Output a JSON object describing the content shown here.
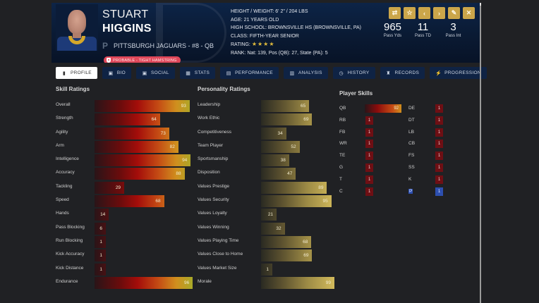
{
  "player": {
    "first_name": "STUART",
    "last_name": "HIGGINS",
    "team_logo": "P",
    "team_line": "PITTSBURGH JAGUARS - #8 - QB",
    "injury": "PROBABLE - TIGHT HAMSTRING"
  },
  "bio": {
    "height_weight": "HEIGHT / WEIGHT: 6' 2\" / 204 LBS",
    "age": "AGE: 21 YEARS OLD",
    "high_school": "HIGH SCHOOL: BROWNSVILLE HS (BROWNSVILLE, PA)",
    "class": "CLASS: FIFTH-YEAR SENIOR",
    "rating_label": "RATING:",
    "rating_stars": "★★★★",
    "rank": "RANK: Nat: 139, Pos (QB): 27, State (PA): 5"
  },
  "actions": [
    {
      "name": "compare-button",
      "icon": "⇄"
    },
    {
      "name": "favorite-button",
      "icon": "☆"
    },
    {
      "name": "previous-button",
      "icon": "‹"
    },
    {
      "name": "next-button",
      "icon": "›"
    },
    {
      "name": "edit-button",
      "icon": "✎"
    },
    {
      "name": "close-button",
      "icon": "✕"
    }
  ],
  "stats": [
    {
      "value": "965",
      "label": "Pass Yds"
    },
    {
      "value": "11",
      "label": "Pass TD"
    },
    {
      "value": "3",
      "label": "Pass Int"
    }
  ],
  "tabs": [
    {
      "label": "PROFILE",
      "icon": "▮",
      "active": true
    },
    {
      "label": "BIO",
      "icon": "▣"
    },
    {
      "label": "SOCIAL",
      "icon": "▣"
    },
    {
      "label": "STATS",
      "icon": "▦"
    },
    {
      "label": "PERFORMANCE",
      "icon": "▤"
    },
    {
      "label": "ANALYSIS",
      "icon": "▥"
    },
    {
      "label": "HISTORY",
      "icon": "◷"
    },
    {
      "label": "RECORDS",
      "icon": "♜"
    },
    {
      "label": "PROGRESSION",
      "icon": "⚡"
    }
  ],
  "skill_ratings": {
    "title": "Skill Ratings",
    "items": [
      {
        "label": "Overall",
        "value": 93
      },
      {
        "label": "Strength",
        "value": 64
      },
      {
        "label": "Agility",
        "value": 73
      },
      {
        "label": "Arm",
        "value": 82
      },
      {
        "label": "Intelligence",
        "value": 94
      },
      {
        "label": "Accuracy",
        "value": 88
      },
      {
        "label": "Tackling",
        "value": 29
      },
      {
        "label": "Speed",
        "value": 68
      },
      {
        "label": "Hands",
        "value": 14
      },
      {
        "label": "Pass Blocking",
        "value": 6
      },
      {
        "label": "Run Blocking",
        "value": 1
      },
      {
        "label": "Kick Accuracy",
        "value": 1
      },
      {
        "label": "Kick Distance",
        "value": 1
      },
      {
        "label": "Endurance",
        "value": 96
      }
    ]
  },
  "personality_ratings": {
    "title": "Personality Ratings",
    "items": [
      {
        "label": "Leadership",
        "value": 65
      },
      {
        "label": "Work Ethic",
        "value": 69
      },
      {
        "label": "Competitiveness",
        "value": 34
      },
      {
        "label": "Team Player",
        "value": 52
      },
      {
        "label": "Sportsmanship",
        "value": 38
      },
      {
        "label": "Disposition",
        "value": 47
      },
      {
        "label": "Values Prestige",
        "value": 89
      },
      {
        "label": "Values Security",
        "value": 95
      },
      {
        "label": "Values Loyalty",
        "value": 21
      },
      {
        "label": "Values Winning",
        "value": 32
      },
      {
        "label": "Values Playing Time",
        "value": 68
      },
      {
        "label": "Values Close to Home",
        "value": 69
      },
      {
        "label": "Values Market Size",
        "value": 1
      },
      {
        "label": "Morale",
        "value": 99
      }
    ]
  },
  "player_skills": {
    "title": "Player Skills",
    "left": [
      {
        "pos": "QB",
        "value": 92
      },
      {
        "pos": "RB",
        "value": 1
      },
      {
        "pos": "FB",
        "value": 1
      },
      {
        "pos": "WR",
        "value": 1
      },
      {
        "pos": "TE",
        "value": 1
      },
      {
        "pos": "G",
        "value": 1
      },
      {
        "pos": "T",
        "value": 1
      },
      {
        "pos": "C",
        "value": 1
      }
    ],
    "right": [
      {
        "pos": "DE",
        "value": 1
      },
      {
        "pos": "DT",
        "value": 1
      },
      {
        "pos": "LB",
        "value": 1
      },
      {
        "pos": "CB",
        "value": 1
      },
      {
        "pos": "FS",
        "value": 1
      },
      {
        "pos": "SS",
        "value": 1
      },
      {
        "pos": "K",
        "value": 1
      },
      {
        "pos": "P",
        "value": 1,
        "highlight": true
      }
    ]
  },
  "colors": {
    "header_bg": "#0d2447",
    "accent_gold": "#cba64a",
    "tab_bg": "#0f2344",
    "injury_red": "#e0485a",
    "page_bg": "#202124",
    "highlight_blue": "#2d4fb0"
  }
}
